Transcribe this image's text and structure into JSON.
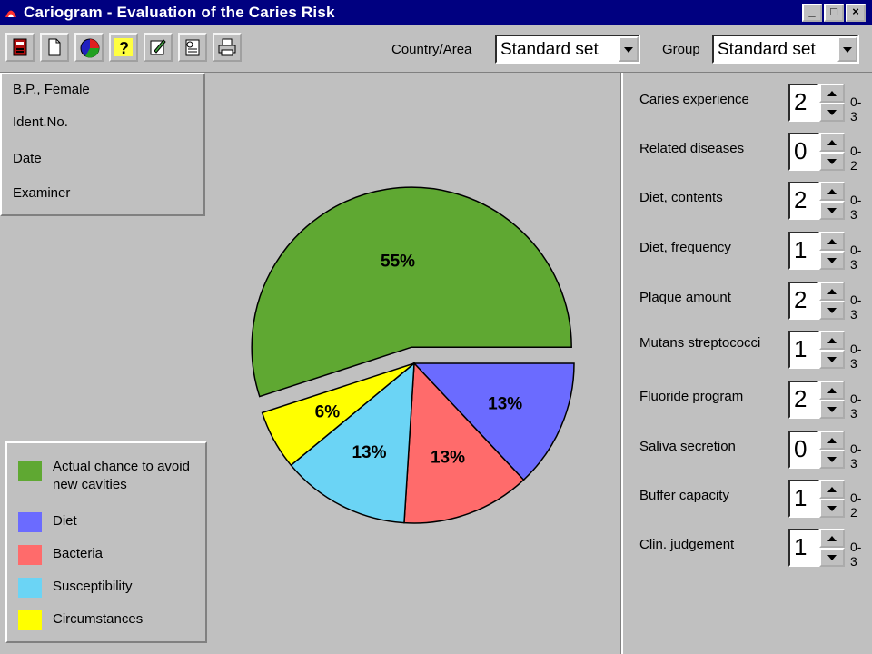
{
  "window": {
    "title": "Cariogram - Evaluation of the Caries Risk",
    "min_label": "_",
    "max_label": "□",
    "close_label": "×"
  },
  "toolbar": {
    "buttons": [
      "exit-icon",
      "new-file-icon",
      "chart-icon",
      "help-icon",
      "edit-icon",
      "notes-icon",
      "print-icon"
    ],
    "country_label": "Country/Area",
    "country_value": "Standard set",
    "group_label": "Group",
    "group_value": "Standard set"
  },
  "patient": {
    "name": "B.P., Female",
    "ident": "Ident.No.",
    "date": "Date",
    "examiner": "Examiner"
  },
  "chart_data": {
    "type": "pie",
    "slices": [
      {
        "name": "Actual chance to avoid new cavities",
        "value": 55,
        "label": "55%",
        "color": "#5fa832",
        "exploded": true
      },
      {
        "name": "Diet",
        "value": 13,
        "label": "13%",
        "color": "#6b6bff"
      },
      {
        "name": "Bacteria",
        "value": 13,
        "label": "13%",
        "color": "#ff6b6b"
      },
      {
        "name": "Susceptibility",
        "value": 13,
        "label": "13%",
        "color": "#6bd4f5"
      },
      {
        "name": "Circumstances",
        "value": 6,
        "label": "6%",
        "color": "#ffff00"
      }
    ]
  },
  "legend": {
    "items": [
      {
        "label": "Actual chance to avoid new cavities",
        "color": "#5fa832"
      },
      {
        "label": "Diet",
        "color": "#6b6bff"
      },
      {
        "label": "Bacteria",
        "color": "#ff6b6b"
      },
      {
        "label": "Susceptibility",
        "color": "#6bd4f5"
      },
      {
        "label": "Circumstances",
        "color": "#ffff00"
      }
    ]
  },
  "params": [
    {
      "label": "Caries experience",
      "value": "2",
      "range": "0-3"
    },
    {
      "label": "Related diseases",
      "value": "0",
      "range": "0-2"
    },
    {
      "label": "Diet, contents",
      "value": "2",
      "range": "0-3"
    },
    {
      "label": "Diet, frequency",
      "value": "1",
      "range": "0-3"
    },
    {
      "label": "Plaque amount",
      "value": "2",
      "range": "0-3"
    },
    {
      "label": "Mutans streptococci",
      "value": "1",
      "range": "0-3"
    },
    {
      "label": "Fluoride program",
      "value": "2",
      "range": "0-3"
    },
    {
      "label": "Saliva secretion",
      "value": "0",
      "range": "0-3"
    },
    {
      "label": "Buffer capacity",
      "value": "1",
      "range": "0-2"
    },
    {
      "label": "Clin. judgement",
      "value": "1",
      "range": "0-3"
    }
  ]
}
